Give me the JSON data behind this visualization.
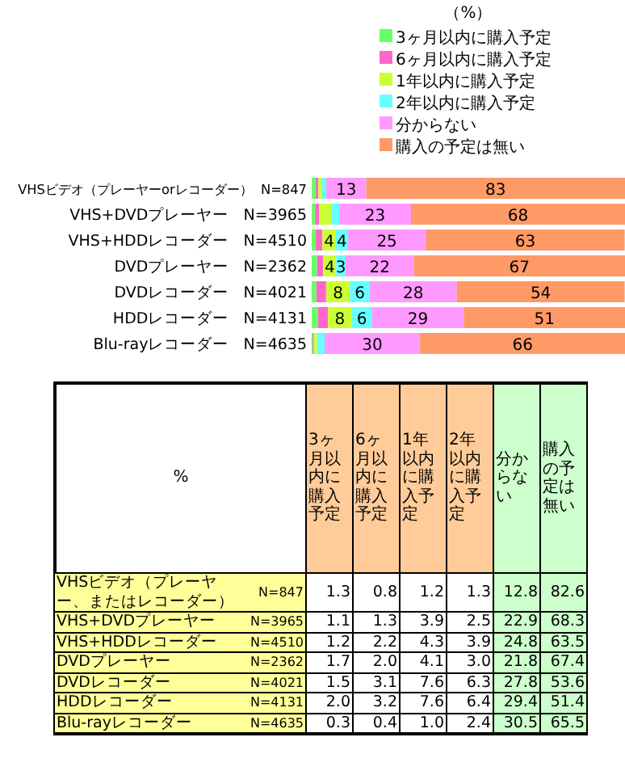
{
  "chart_data": [
    {
      "type": "bar",
      "orientation": "horizontal",
      "stacked": true,
      "title": "（%）",
      "legend": "top right",
      "xlim": [
        0,
        100
      ],
      "categories": [
        "VHSビデオ（プレーヤーorレコーダー）  N=847",
        "VHS+DVDプレーヤー   N=3965",
        "VHS+HDDレコーダー   N=4510",
        "DVDプレーヤー   N=2362",
        "DVDレコーダー   N=4021",
        "HDDレコーダー   N=4131",
        "Blu-rayレコーダー   N=4635"
      ],
      "series": [
        {
          "name": "3ヶ月以内に購入予定",
          "color": "#66ff66",
          "values": [
            1.3,
            1.1,
            1.2,
            1.7,
            1.5,
            2.0,
            0.3
          ]
        },
        {
          "name": "6ヶ月以内に購入予定",
          "color": "#ff66cc",
          "values": [
            0.8,
            1.3,
            2.2,
            2.0,
            3.1,
            3.2,
            0.4
          ]
        },
        {
          "name": "1年以内に購入予定",
          "color": "#ccff33",
          "values": [
            1.2,
            3.9,
            4.3,
            4.1,
            7.6,
            7.6,
            1.0
          ],
          "value_labels": [
            null,
            null,
            "4",
            "4",
            "8",
            "8",
            null
          ]
        },
        {
          "name": "2年以内に購入予定",
          "color": "#66ffff",
          "values": [
            1.3,
            2.5,
            3.9,
            3.0,
            6.3,
            6.4,
            2.4
          ],
          "value_labels": [
            null,
            null,
            "4",
            "3",
            "6",
            "6",
            null
          ]
        },
        {
          "name": "分からない",
          "color": "#ff99ff",
          "values": [
            12.8,
            22.9,
            24.8,
            21.8,
            27.8,
            29.4,
            30.5
          ],
          "value_labels": [
            "13",
            "23",
            "25",
            "22",
            "28",
            "29",
            "30"
          ]
        },
        {
          "name": "購入の予定は無い",
          "color": "#ff9966",
          "values": [
            82.6,
            68.3,
            63.5,
            67.4,
            53.6,
            51.4,
            65.5
          ],
          "value_labels": [
            "83",
            "68",
            "63",
            "67",
            "54",
            "51",
            "66"
          ]
        }
      ]
    },
    {
      "type": "heatmap",
      "title": "%",
      "data_labels": true,
      "categories": [
        "3ヶ月以内に購入予定",
        "6ヶ月以内に購入予定",
        "1年以内に購入予定",
        "2年以内に購入予定",
        "分からない",
        "購入の予定は無い"
      ],
      "colors": [
        "#ffcc99",
        "#ffcc99",
        "#ffcc99",
        "#ffcc99",
        "#ccffcc",
        "#ccffcc"
      ],
      "y_categories": [
        "VHSビデオ（プレーヤー、またはレコーダー）",
        "VHS+DVDプレーヤー",
        "VHS+HDDレコーダー",
        "DVDプレーヤー",
        "DVDレコーダー",
        "HDDレコーダー",
        "Blu-rayレコーダー"
      ],
      "y2_categories": [
        "N=847",
        "N=3965",
        "N=4510",
        "N=2362",
        "N=4021",
        "N=4131",
        "N=4635"
      ],
      "cell_labels": [
        [
          "1.3",
          "0.8",
          "1.2",
          "1.3",
          "12.8",
          "82.6"
        ],
        [
          "1.1",
          "1.3",
          "3.9",
          "2.5",
          "22.9",
          "68.3"
        ],
        [
          "1.2",
          "2.2",
          "4.3",
          "3.9",
          "24.8",
          "63.5"
        ],
        [
          "1.7",
          "2.0",
          "4.1",
          "3.0",
          "21.8",
          "67.4"
        ],
        [
          "1.5",
          "3.1",
          "7.6",
          "6.3",
          "27.8",
          "53.6"
        ],
        [
          "2.0",
          "3.2",
          "7.6",
          "6.4",
          "29.4",
          "51.4"
        ],
        [
          "0.3",
          "0.4",
          "1.0",
          "2.4",
          "30.5",
          "65.5"
        ]
      ],
      "cells": [
        [
          1.3,
          0.8,
          1.2,
          1.3,
          12.8,
          82.6
        ],
        [
          1.1,
          1.3,
          3.9,
          2.5,
          22.9,
          68.3
        ],
        [
          1.2,
          2.2,
          4.3,
          3.9,
          24.8,
          63.5
        ],
        [
          1.7,
          2.0,
          4.1,
          3.0,
          21.8,
          67.4
        ],
        [
          1.5,
          3.1,
          7.6,
          6.3,
          27.8,
          53.6
        ],
        [
          2.0,
          3.2,
          7.6,
          6.4,
          29.4,
          51.4
        ],
        [
          0.3,
          0.4,
          1.0,
          2.4,
          30.5,
          65.5
        ]
      ]
    }
  ]
}
